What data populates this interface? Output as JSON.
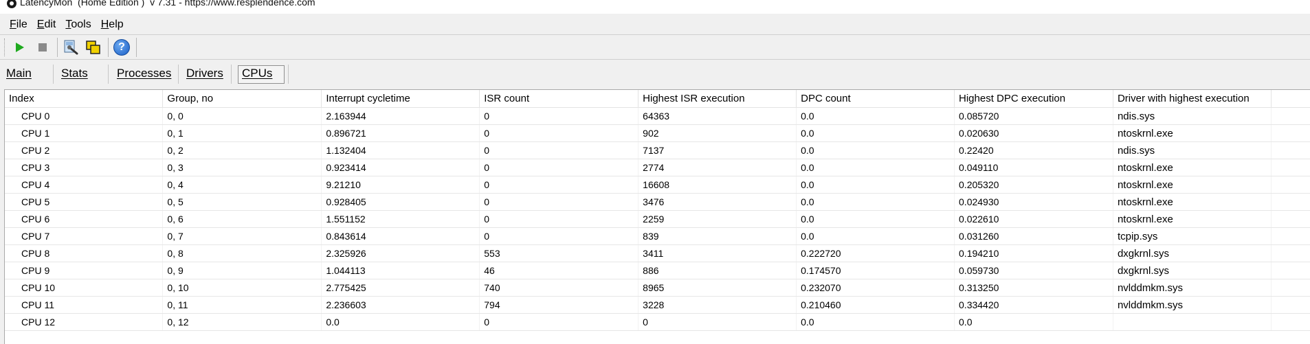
{
  "window": {
    "title": "LatencyMon  (Home Edition )  v 7.31 - https://www.resplendence.com"
  },
  "menu": [
    {
      "accel": "F",
      "rest": "ile"
    },
    {
      "accel": "E",
      "rest": "dit"
    },
    {
      "accel": "T",
      "rest": "ools"
    },
    {
      "accel": "H",
      "rest": "elp"
    }
  ],
  "toolbar": {
    "buttons": [
      {
        "name": "start-button",
        "icon": "play-icon"
      },
      {
        "name": "stop-button",
        "icon": "stop-icon"
      },
      {
        "name": "tools-button",
        "icon": "tools-icon"
      },
      {
        "name": "windows-button",
        "icon": "windows-icon"
      },
      {
        "name": "help-button",
        "icon": "help-icon",
        "glyph": "?"
      }
    ],
    "colors": {
      "play": "#1faa1f",
      "stop": "#8a8a8a",
      "help": "#1b5fc6"
    }
  },
  "tabs": [
    {
      "label": "Main",
      "active": false
    },
    {
      "label": "Stats",
      "active": false
    },
    {
      "label": "Processes",
      "active": false
    },
    {
      "label": "Drivers",
      "active": false
    },
    {
      "label": "CPUs",
      "active": true
    }
  ],
  "cpu_table": {
    "columns": [
      "Index",
      "Group, no",
      "Interrupt cycletime",
      "ISR count",
      "Highest ISR execution",
      "DPC count",
      "Highest DPC execution",
      "Driver with highest execution"
    ],
    "rows": [
      [
        "CPU 0",
        "0, 0",
        "2.163944",
        "0",
        "64363",
        "0.0",
        "0.085720",
        "ndis.sys"
      ],
      [
        "CPU 1",
        "0, 1",
        "0.896721",
        "0",
        "902",
        "0.0",
        "0.020630",
        "ntoskrnl.exe"
      ],
      [
        "CPU 2",
        "0, 2",
        "1.132404",
        "0",
        "7137",
        "0.0",
        "0.22420",
        "ndis.sys"
      ],
      [
        "CPU 3",
        "0, 3",
        "0.923414",
        "0",
        "2774",
        "0.0",
        "0.049110",
        "ntoskrnl.exe"
      ],
      [
        "CPU 4",
        "0, 4",
        "9.21210",
        "0",
        "16608",
        "0.0",
        "0.205320",
        "ntoskrnl.exe"
      ],
      [
        "CPU 5",
        "0, 5",
        "0.928405",
        "0",
        "3476",
        "0.0",
        "0.024930",
        "ntoskrnl.exe"
      ],
      [
        "CPU 6",
        "0, 6",
        "1.551152",
        "0",
        "2259",
        "0.0",
        "0.022610",
        "ntoskrnl.exe"
      ],
      [
        "CPU 7",
        "0, 7",
        "0.843614",
        "0",
        "839",
        "0.0",
        "0.031260",
        "tcpip.sys"
      ],
      [
        "CPU 8",
        "0, 8",
        "2.325926",
        "553",
        "3411",
        "0.222720",
        "0.194210",
        "dxgkrnl.sys"
      ],
      [
        "CPU 9",
        "0, 9",
        "1.044113",
        "46",
        "886",
        "0.174570",
        "0.059730",
        "dxgkrnl.sys"
      ],
      [
        "CPU 10",
        "0, 10",
        "2.775425",
        "740",
        "8965",
        "0.232070",
        "0.313250",
        "nvlddmkm.sys"
      ],
      [
        "CPU 11",
        "0, 11",
        "2.236603",
        "794",
        "3228",
        "0.210460",
        "0.334420",
        "nvlddmkm.sys"
      ],
      [
        "CPU 12",
        "0, 12",
        "0.0",
        "0",
        "0",
        "0.0",
        "0.0",
        ""
      ]
    ]
  }
}
